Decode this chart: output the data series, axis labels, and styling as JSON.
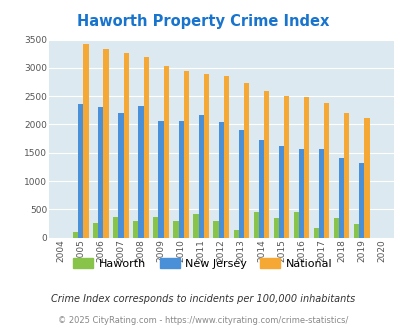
{
  "title": "Haworth Property Crime Index",
  "title_color": "#1874cd",
  "years": [
    2004,
    2005,
    2006,
    2007,
    2008,
    2009,
    2010,
    2011,
    2012,
    2013,
    2014,
    2015,
    2016,
    2017,
    2018,
    2019,
    2020
  ],
  "haworth": [
    0,
    100,
    250,
    370,
    300,
    370,
    300,
    420,
    300,
    140,
    450,
    350,
    460,
    175,
    350,
    245,
    0
  ],
  "new_jersey": [
    0,
    2360,
    2300,
    2200,
    2330,
    2060,
    2060,
    2160,
    2050,
    1900,
    1720,
    1620,
    1560,
    1560,
    1410,
    1320,
    0
  ],
  "national": [
    0,
    3420,
    3340,
    3260,
    3200,
    3040,
    2950,
    2900,
    2860,
    2730,
    2600,
    2500,
    2480,
    2380,
    2200,
    2120,
    0
  ],
  "haworth_color": "#88c34a",
  "nj_color": "#4a90d9",
  "national_color": "#f5a833",
  "plot_bg_color": "#dce9f0",
  "ylim": [
    0,
    3500
  ],
  "yticks": [
    0,
    500,
    1000,
    1500,
    2000,
    2500,
    3000,
    3500
  ],
  "subtitle": "Crime Index corresponds to incidents per 100,000 inhabitants",
  "footer": "© 2025 CityRating.com - https://www.cityrating.com/crime-statistics/",
  "bar_width": 0.26
}
